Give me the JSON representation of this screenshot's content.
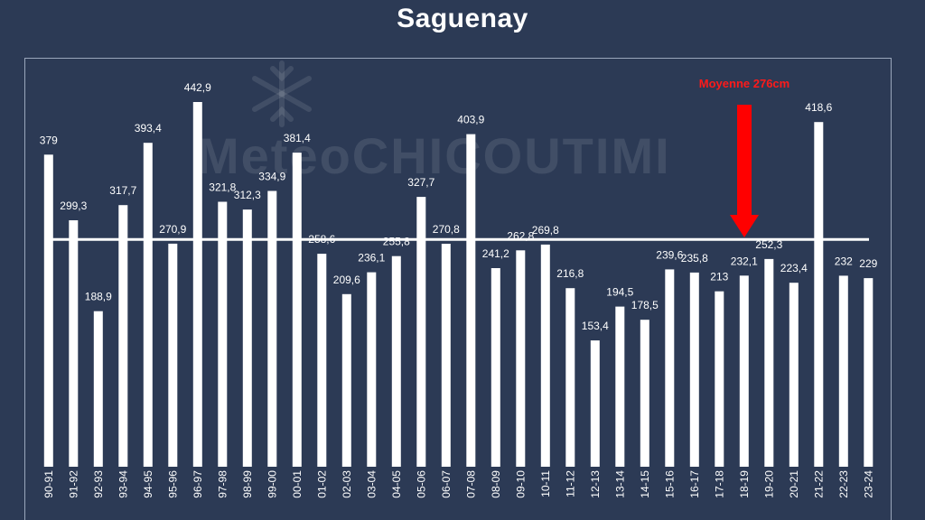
{
  "page": {
    "title": "Saguenay"
  },
  "watermark": {
    "text": "MeteoCHICOUTIMI"
  },
  "chart_data": {
    "type": "bar",
    "title": "Saguenay",
    "xlabel": "",
    "ylabel": "",
    "ylim": [
      0,
      480
    ],
    "grid": false,
    "bar_color": "#ffffff",
    "background_color": "#2c3a55",
    "categories": [
      "90-91",
      "91-92",
      "92-93",
      "93-94",
      "94-95",
      "95-96",
      "96-97",
      "97-98",
      "98-99",
      "99-00",
      "00-01",
      "01-02",
      "02-03",
      "03-04",
      "04-05",
      "05-06",
      "06-07",
      "07-08",
      "08-09",
      "09-10",
      "10-11",
      "11-12",
      "12-13",
      "13-14",
      "14-15",
      "15-16",
      "16-17",
      "17-18",
      "18-19",
      "19-20",
      "20-21",
      "21-22",
      "22-23",
      "23-24"
    ],
    "values": [
      379,
      299.3,
      188.9,
      317.7,
      393.4,
      270.9,
      442.9,
      321.8,
      312.3,
      334.9,
      381.4,
      258.6,
      209.6,
      236.1,
      255.8,
      327.7,
      270.8,
      403.9,
      241.2,
      262.8,
      269.8,
      216.8,
      153.4,
      194.5,
      178.5,
      239.6,
      235.8,
      213,
      232.1,
      252.3,
      223.4,
      418.6,
      232,
      229
    ],
    "value_labels": [
      "379",
      "299,3",
      "188,9",
      "317,7",
      "393,4",
      "270,9",
      "442,9",
      "321,8",
      "312,3",
      "334,9",
      "381,4",
      "258,6",
      "209,6",
      "236,1",
      "255,8",
      "327,7",
      "270,8",
      "403,9",
      "241,2",
      "262,8",
      "269,8",
      "216,8",
      "153,4",
      "194,5",
      "178,5",
      "239,6",
      "235,8",
      "213",
      "232,1",
      "252,3",
      "223,4",
      "418,6",
      "232",
      "229"
    ],
    "average": {
      "value": 276,
      "label": "Moyenne 276cm",
      "line_color": "#ffffff"
    },
    "annotation": {
      "text": "Moyenne 276cm",
      "color": "#ff0000",
      "arrow_color": "#ff0000"
    }
  }
}
